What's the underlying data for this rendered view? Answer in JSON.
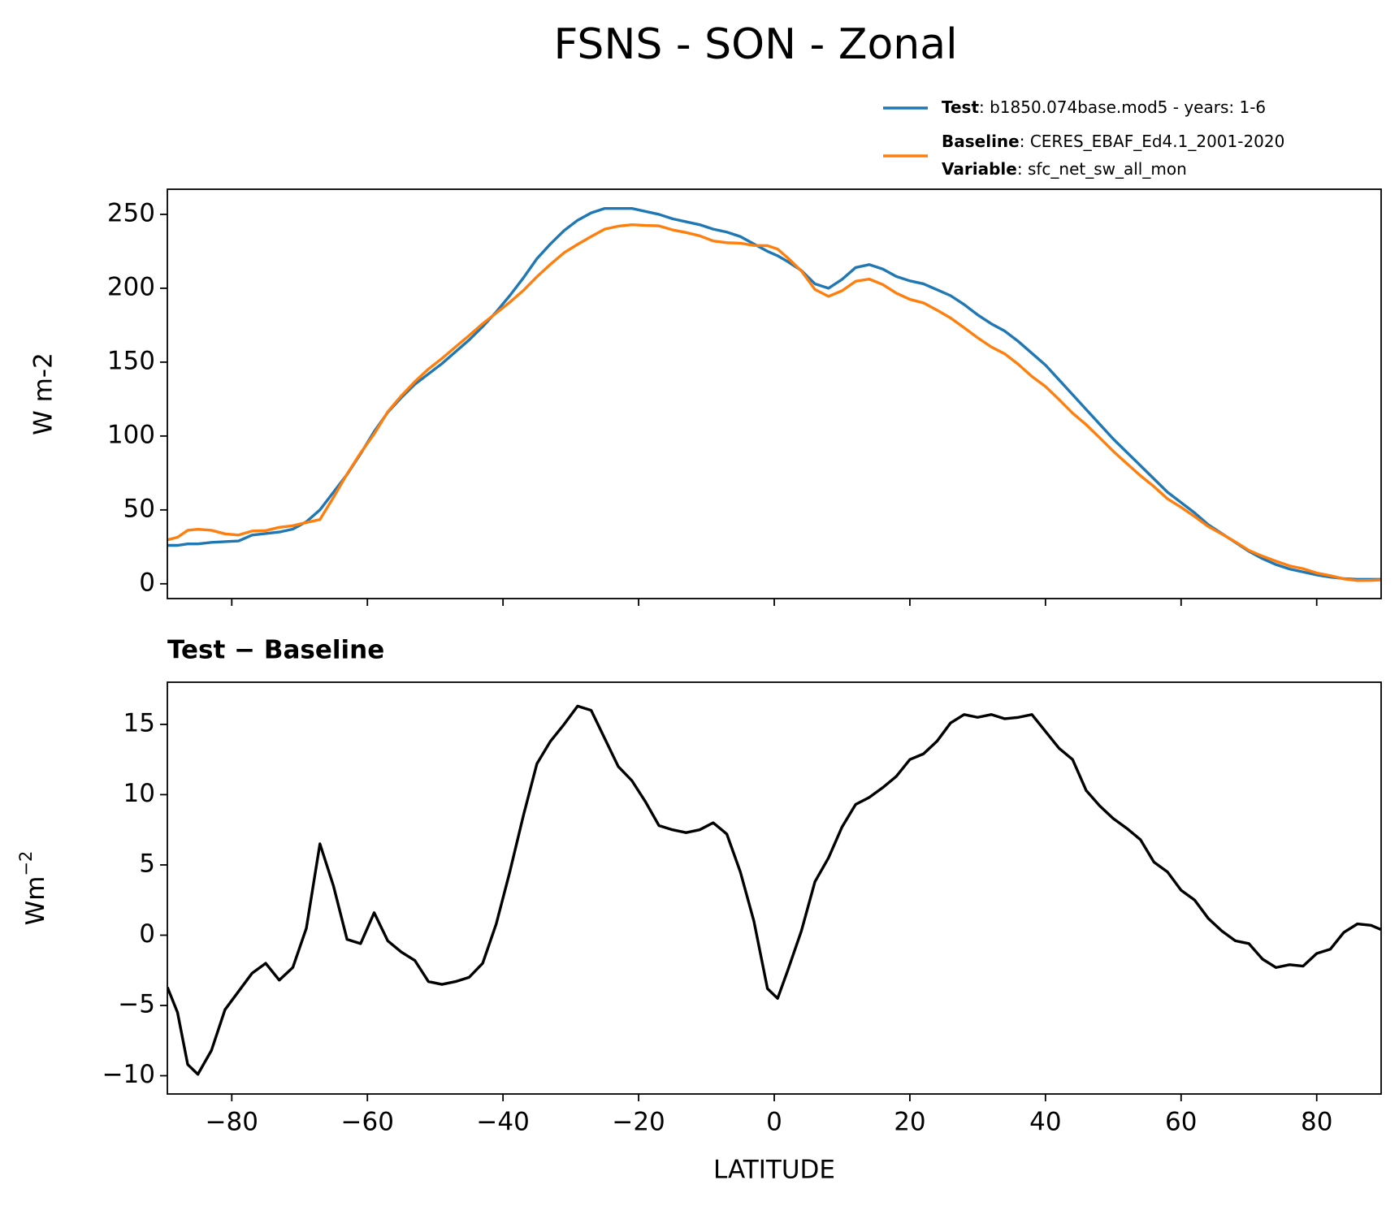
{
  "title": "FSNS - SON - Zonal",
  "chart_data": [
    {
      "type": "line",
      "ylabel": "W m-2",
      "x": [
        -89.5,
        -88,
        -86.5,
        -85,
        -83,
        -81,
        -79,
        -77,
        -75,
        -73,
        -71,
        -69,
        -67,
        -65,
        -63,
        -61,
        -59,
        -57,
        -55,
        -53,
        -51,
        -49,
        -47,
        -45,
        -43,
        -41,
        -39,
        -37,
        -35,
        -33,
        -31,
        -29,
        -27,
        -25,
        -23,
        -21,
        -19,
        -17,
        -15,
        -13,
        -11,
        -9,
        -7,
        -5,
        -3,
        -1,
        0.5,
        2,
        4,
        6,
        8,
        10,
        12,
        14,
        16,
        18,
        20,
        22,
        24,
        26,
        28,
        30,
        32,
        34,
        36,
        38,
        40,
        42,
        44,
        46,
        48,
        50,
        52,
        54,
        56,
        58,
        60,
        62,
        64,
        66,
        68,
        70,
        72,
        74,
        76,
        78,
        80,
        82,
        84,
        86,
        88,
        89.5
      ],
      "series": [
        {
          "name": "Test",
          "description": ": b1850.074base.mod5 - years: 1-6",
          "color": "#1f77b4",
          "values": [
            26,
            26,
            27,
            27,
            28,
            28.5,
            29,
            33,
            34,
            35,
            37,
            42,
            50,
            62,
            74,
            88,
            103,
            116,
            126,
            135,
            142,
            149,
            157,
            165,
            174,
            184,
            195,
            207,
            220,
            230,
            239,
            246,
            251,
            254,
            254,
            254,
            252,
            250,
            247,
            245,
            243,
            240,
            238,
            235,
            230,
            225,
            222,
            218,
            212,
            203,
            200,
            206,
            214,
            216,
            213,
            208,
            205,
            203,
            199,
            195,
            189,
            182,
            176,
            171,
            164,
            156,
            148,
            138,
            128,
            118,
            108,
            98,
            89,
            80,
            71,
            62,
            55,
            48,
            40,
            34,
            28,
            22,
            17,
            13,
            10,
            8,
            6,
            4.5,
            3.5,
            3,
            3,
            3
          ]
        },
        {
          "name": "Baseline",
          "description": ": CERES_EBAF_Ed4.1_2001-2020",
          "color": "#ff7f0e",
          "values": [
            29.7,
            31.5,
            36.2,
            36.9,
            36.2,
            33.8,
            33,
            35.7,
            36,
            38.2,
            39.3,
            41.5,
            43.5,
            58.5,
            74.3,
            88.6,
            101.4,
            116.4,
            127.2,
            136.8,
            145.3,
            152.5,
            160.3,
            168,
            176,
            183.2,
            190.5,
            198.5,
            207.8,
            216.2,
            224,
            229.7,
            235,
            240,
            242,
            243,
            242.5,
            242.2,
            239.5,
            237.7,
            235.5,
            232,
            230.8,
            230.5,
            229,
            228.8,
            226.5,
            220.5,
            211.7,
            199.2,
            194.5,
            198.3,
            204.7,
            206.2,
            202.5,
            196.7,
            192.5,
            190.1,
            185.2,
            179.9,
            173.3,
            166.5,
            160.3,
            155.6,
            148.5,
            140.3,
            133.5,
            124.7,
            115.5,
            107.7,
            98.8,
            89.7,
            81.4,
            73.2,
            65.8,
            57.5,
            51.8,
            45.5,
            38.8,
            33.7,
            28.4,
            22.6,
            18.7,
            15.3,
            12.1,
            10.2,
            7.3,
            5.5,
            3.3,
            2.2,
            2.3,
            2.6
          ]
        }
      ],
      "variable": {
        "name": "Variable",
        "description": ": sfc_net_sw_all_mon"
      },
      "xlim": [
        -89.5,
        89.5
      ],
      "ylim": [
        -10,
        267
      ],
      "xticks": [
        -80,
        -60,
        -40,
        -20,
        0,
        20,
        40,
        60,
        80
      ],
      "yticks": [
        0,
        50,
        100,
        150,
        200,
        250
      ]
    },
    {
      "type": "line",
      "title": "Test − Baseline",
      "xlabel": "LATITUDE",
      "ylabel": {
        "base": "Wm",
        "sup": "−2"
      },
      "x": [
        -89.5,
        -88,
        -86.5,
        -85,
        -83,
        -81,
        -79,
        -77,
        -75,
        -73,
        -71,
        -69,
        -67,
        -65,
        -63,
        -61,
        -59,
        -57,
        -55,
        -53,
        -51,
        -49,
        -47,
        -45,
        -43,
        -41,
        -39,
        -37,
        -35,
        -33,
        -31,
        -29,
        -27,
        -25,
        -23,
        -21,
        -19,
        -17,
        -15,
        -13,
        -11,
        -9,
        -7,
        -5,
        -3,
        -1,
        0.5,
        2,
        4,
        6,
        8,
        10,
        12,
        14,
        16,
        18,
        20,
        22,
        24,
        26,
        28,
        30,
        32,
        34,
        36,
        38,
        40,
        42,
        44,
        46,
        48,
        50,
        52,
        54,
        56,
        58,
        60,
        62,
        64,
        66,
        68,
        70,
        72,
        74,
        76,
        78,
        80,
        82,
        84,
        86,
        88,
        89.5
      ],
      "series": [
        {
          "color": "#000000",
          "values": [
            -3.7,
            -5.5,
            -9.2,
            -9.9,
            -8.2,
            -5.3,
            -4,
            -2.7,
            -2.0,
            -3.2,
            -2.3,
            0.5,
            6.5,
            3.5,
            -0.3,
            -0.6,
            1.6,
            -0.4,
            -1.2,
            -1.8,
            -3.3,
            -3.5,
            -3.3,
            -3.0,
            -2.0,
            0.8,
            4.5,
            8.5,
            12.2,
            13.8,
            15.0,
            16.3,
            16.0,
            14.0,
            12.0,
            11.0,
            9.5,
            7.8,
            7.5,
            7.3,
            7.5,
            8.0,
            7.2,
            4.5,
            1.0,
            -3.8,
            -4.5,
            -2.5,
            0.3,
            3.8,
            5.5,
            7.7,
            9.3,
            9.8,
            10.5,
            11.3,
            12.5,
            12.9,
            13.8,
            15.1,
            15.7,
            15.5,
            15.7,
            15.4,
            15.5,
            15.7,
            14.5,
            13.3,
            12.5,
            10.3,
            9.2,
            8.3,
            7.6,
            6.8,
            5.2,
            4.5,
            3.2,
            2.5,
            1.2,
            0.3,
            -0.4,
            -0.6,
            -1.7,
            -2.3,
            -2.1,
            -2.2,
            -1.3,
            -1.0,
            0.2,
            0.8,
            0.7,
            0.4
          ]
        }
      ],
      "xlim": [
        -89.5,
        89.5
      ],
      "ylim": [
        -11.3,
        18
      ],
      "xticks": [
        {
          "value": -80,
          "label": "−80"
        },
        {
          "value": -60,
          "label": "−60"
        },
        {
          "value": -40,
          "label": "−40"
        },
        {
          "value": -20,
          "label": "−20"
        },
        0,
        20,
        40,
        60,
        80
      ],
      "yticks": [
        {
          "value": -10,
          "label": "−10"
        },
        {
          "value": -5,
          "label": "−5"
        },
        0,
        5,
        10,
        15
      ]
    }
  ]
}
